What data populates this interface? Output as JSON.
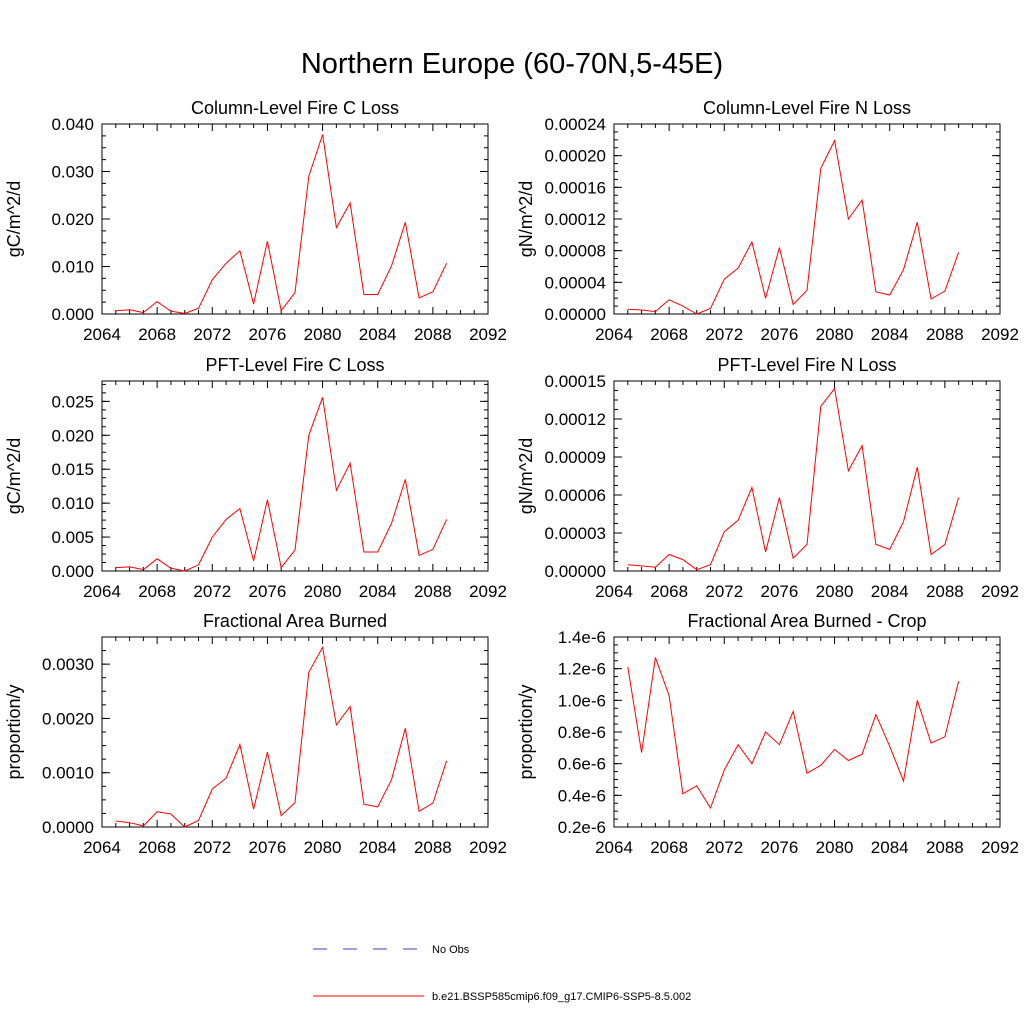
{
  "figure": {
    "title": "Northern Europe (60-70N,5-45E)",
    "legend": [
      {
        "label": "No Obs",
        "color": "#3b3bbf",
        "style": "dashed"
      },
      {
        "label": "b.e21.BSSP585cmip6.f09_g17.CMIP6-SSP5-8.5.002",
        "color": "#ff0000",
        "style": "solid"
      }
    ],
    "line_color": "#ff0000"
  },
  "chart_data": [
    {
      "type": "line",
      "title": "Column-Level Fire C Loss",
      "ylabel": "gC/m^2/d",
      "xlim": [
        2064,
        2092
      ],
      "xticks": [
        "2064",
        "2068",
        "2072",
        "2076",
        "2080",
        "2084",
        "2088",
        "2092"
      ],
      "ylim": [
        0,
        0.04
      ],
      "yticks": [
        "0.000",
        "0.010",
        "0.020",
        "0.030",
        "0.040"
      ],
      "x": [
        2065,
        2066,
        2067,
        2068,
        2069,
        2070,
        2071,
        2072,
        2073,
        2074,
        2075,
        2076,
        2077,
        2078,
        2079,
        2080,
        2081,
        2082,
        2083,
        2084,
        2085,
        2086,
        2087,
        2088,
        2089
      ],
      "values": [
        0.0007,
        0.0009,
        0.0003,
        0.0026,
        0.0006,
        0.0001,
        0.0012,
        0.0072,
        0.0107,
        0.0133,
        0.0021,
        0.0153,
        0.0007,
        0.0045,
        0.029,
        0.0378,
        0.0182,
        0.0234,
        0.0041,
        0.0041,
        0.0101,
        0.0193,
        0.0034,
        0.0047,
        0.0107
      ]
    },
    {
      "type": "line",
      "title": "Column-Level Fire N Loss",
      "ylabel": "gN/m^2/d",
      "xlim": [
        2064,
        2092
      ],
      "xticks": [
        "2064",
        "2068",
        "2072",
        "2076",
        "2080",
        "2084",
        "2088",
        "2092"
      ],
      "ylim": [
        0,
        0.00024
      ],
      "yticks": [
        "0.00000",
        "0.00004",
        "0.00008",
        "0.00012",
        "0.00016",
        "0.00020",
        "0.00024"
      ],
      "x": [
        2065,
        2066,
        2067,
        2068,
        2069,
        2070,
        2071,
        2072,
        2073,
        2074,
        2075,
        2076,
        2077,
        2078,
        2079,
        2080,
        2081,
        2082,
        2083,
        2084,
        2085,
        2086,
        2087,
        2088,
        2089
      ],
      "values": [
        6e-06,
        5e-06,
        3e-06,
        1.8e-05,
        1e-05,
        0.0,
        7e-06,
        4.4e-05,
        5.8e-05,
        9.1e-05,
        2e-05,
        8.4e-05,
        1.2e-05,
        3e-05,
        0.000184,
        0.000219,
        0.00012,
        0.000144,
        2.8e-05,
        2.4e-05,
        5.6e-05,
        0.000116,
        1.9e-05,
        2.9e-05,
        7.8e-05
      ]
    },
    {
      "type": "line",
      "title": "PFT-Level Fire C Loss",
      "ylabel": "gC/m^2/d",
      "xlim": [
        2064,
        2092
      ],
      "xticks": [
        "2064",
        "2068",
        "2072",
        "2076",
        "2080",
        "2084",
        "2088",
        "2092"
      ],
      "ylim": [
        0,
        0.028
      ],
      "yticks": [
        "0.000",
        "0.005",
        "0.010",
        "0.015",
        "0.020",
        "0.025"
      ],
      "x": [
        2065,
        2066,
        2067,
        2068,
        2069,
        2070,
        2071,
        2072,
        2073,
        2074,
        2075,
        2076,
        2077,
        2078,
        2079,
        2080,
        2081,
        2082,
        2083,
        2084,
        2085,
        2086,
        2087,
        2088,
        2089
      ],
      "values": [
        0.0005,
        0.0006,
        0.0002,
        0.0018,
        0.0004,
        0.0,
        0.0009,
        0.005,
        0.0076,
        0.0092,
        0.0015,
        0.0105,
        0.0005,
        0.0031,
        0.02,
        0.0256,
        0.0119,
        0.0159,
        0.0028,
        0.0028,
        0.007,
        0.0135,
        0.0023,
        0.0032,
        0.0076
      ]
    },
    {
      "type": "line",
      "title": "PFT-Level Fire N Loss",
      "ylabel": "gN/m^2/d",
      "xlim": [
        2064,
        2092
      ],
      "xticks": [
        "2064",
        "2068",
        "2072",
        "2076",
        "2080",
        "2084",
        "2088",
        "2092"
      ],
      "ylim": [
        0,
        0.00015
      ],
      "yticks": [
        "0.00000",
        "0.00003",
        "0.00006",
        "0.00009",
        "0.00012",
        "0.00015"
      ],
      "x": [
        2065,
        2066,
        2067,
        2068,
        2069,
        2070,
        2071,
        2072,
        2073,
        2074,
        2075,
        2076,
        2077,
        2078,
        2079,
        2080,
        2081,
        2082,
        2083,
        2084,
        2085,
        2086,
        2087,
        2088,
        2089
      ],
      "values": [
        5e-06,
        4e-06,
        3e-06,
        1.3e-05,
        9e-06,
        1e-06,
        5e-06,
        3.1e-05,
        4e-05,
        6.6e-05,
        1.5e-05,
        5.8e-05,
        1e-05,
        2.1e-05,
        0.00013,
        0.000144,
        7.9e-05,
        9.9e-05,
        2.1e-05,
        1.7e-05,
        3.9e-05,
        8.2e-05,
        1.3e-05,
        2.1e-05,
        5.8e-05
      ]
    },
    {
      "type": "line",
      "title": "Fractional Area Burned",
      "ylabel": "proportion/y",
      "xlim": [
        2064,
        2092
      ],
      "xticks": [
        "2064",
        "2068",
        "2072",
        "2076",
        "2080",
        "2084",
        "2088",
        "2092"
      ],
      "ylim": [
        0,
        0.0035
      ],
      "yticks": [
        "0.0000",
        "0.0010",
        "0.0020",
        "0.0030"
      ],
      "x": [
        2065,
        2066,
        2067,
        2068,
        2069,
        2070,
        2071,
        2072,
        2073,
        2074,
        2075,
        2076,
        2077,
        2078,
        2079,
        2080,
        2081,
        2082,
        2083,
        2084,
        2085,
        2086,
        2087,
        2088,
        2089
      ],
      "values": [
        0.00011,
        8e-05,
        2e-05,
        0.00028,
        0.00024,
        0.0,
        0.00012,
        0.0007,
        0.0009,
        0.00152,
        0.00033,
        0.00138,
        0.00021,
        0.00045,
        0.00285,
        0.00331,
        0.00188,
        0.00222,
        0.00042,
        0.00037,
        0.00087,
        0.00182,
        0.00029,
        0.00044,
        0.00122
      ]
    },
    {
      "type": "line",
      "title": "Fractional Area Burned - Crop",
      "ylabel": "proportion/y",
      "xlim": [
        2064,
        2092
      ],
      "xticks": [
        "2064",
        "2068",
        "2072",
        "2076",
        "2080",
        "2084",
        "2088",
        "2092"
      ],
      "ylim": [
        2e-07,
        1.4e-06
      ],
      "yticks": [
        "0.2e-6",
        "0.4e-6",
        "0.6e-6",
        "0.8e-6",
        "1.0e-6",
        "1.2e-6",
        "1.4e-6"
      ],
      "x": [
        2065,
        2066,
        2067,
        2068,
        2069,
        2070,
        2071,
        2072,
        2073,
        2074,
        2075,
        2076,
        2077,
        2078,
        2079,
        2080,
        2081,
        2082,
        2083,
        2084,
        2085,
        2086,
        2087,
        2088,
        2089
      ],
      "values": [
        1.21e-06,
        6.7e-07,
        1.27e-06,
        1.03e-06,
        4.1e-07,
        4.6e-07,
        3.2e-07,
        5.6e-07,
        7.2e-07,
        6e-07,
        8e-07,
        7.2e-07,
        9.3e-07,
        5.4e-07,
        5.9e-07,
        6.9e-07,
        6.2e-07,
        6.6e-07,
        9.1e-07,
        7.1e-07,
        4.9e-07,
        1e-06,
        7.3e-07,
        7.7e-07,
        1.12e-06
      ]
    }
  ]
}
